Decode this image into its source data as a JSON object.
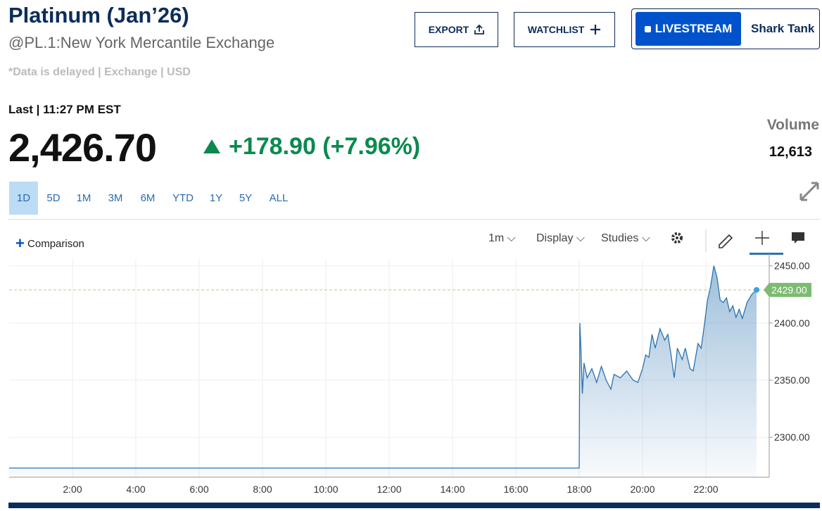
{
  "header": {
    "title": "Platinum (Jan’26)",
    "symbol": "@PL.1:New York Mercantile Exchange",
    "note": "*Data is delayed | Exchange | USD"
  },
  "buttons": {
    "export": "EXPORT",
    "watchlist": "WATCHLIST",
    "livestream": "LIVESTREAM",
    "show": "Shark Tank"
  },
  "quote": {
    "label": "Last | 11:27 PM EST",
    "price": "2,426.70",
    "change": "+178.90 (+7.96%)"
  },
  "volume": {
    "label": "Volume",
    "value": "12,613"
  },
  "ranges": [
    "1D",
    "5D",
    "1M",
    "3M",
    "6M",
    "YTD",
    "1Y",
    "5Y",
    "ALL"
  ],
  "toolbar": {
    "comparison": "Comparison",
    "interval": "1m",
    "display": "Display",
    "studies": "Studies"
  },
  "chart_data": {
    "type": "area",
    "color": "#2a72b0",
    "x": [
      0,
      18.0,
      18.02,
      18.05,
      18.1,
      18.15,
      18.25,
      18.4,
      18.55,
      18.7,
      18.85,
      19.0,
      19.1,
      19.3,
      19.5,
      19.7,
      19.85,
      20.0,
      20.1,
      20.2,
      20.3,
      20.4,
      20.55,
      20.7,
      20.8,
      20.9,
      21.0,
      21.1,
      21.25,
      21.35,
      21.5,
      21.6,
      21.75,
      21.85,
      21.95,
      22.05,
      22.15,
      22.25,
      22.35,
      22.45,
      22.55,
      22.65,
      22.75,
      22.85,
      22.95,
      23.05,
      23.15,
      23.3,
      23.45,
      23.6
    ],
    "values": [
      2273,
      2273,
      2400,
      2380,
      2338,
      2365,
      2352,
      2360,
      2348,
      2362,
      2350,
      2342,
      2355,
      2352,
      2358,
      2350,
      2348,
      2360,
      2372,
      2370,
      2390,
      2378,
      2395,
      2385,
      2390,
      2372,
      2352,
      2378,
      2368,
      2378,
      2360,
      2358,
      2382,
      2378,
      2398,
      2420,
      2432,
      2450,
      2440,
      2420,
      2418,
      2422,
      2410,
      2415,
      2405,
      2412,
      2404,
      2418,
      2425,
      2429
    ],
    "xlim": [
      0,
      24
    ],
    "ylim": [
      2265,
      2456
    ],
    "xticks": [
      {
        "value": 2,
        "label": "2:00"
      },
      {
        "value": 4,
        "label": "4:00"
      },
      {
        "value": 6,
        "label": "6:00"
      },
      {
        "value": 8,
        "label": "8:00"
      },
      {
        "value": 10,
        "label": "10:00"
      },
      {
        "value": 12,
        "label": "12:00"
      },
      {
        "value": 14,
        "label": "14:00"
      },
      {
        "value": 16,
        "label": "16:00"
      },
      {
        "value": 18,
        "label": "18:00"
      },
      {
        "value": 20,
        "label": "20:00"
      },
      {
        "value": 22,
        "label": "22:00"
      }
    ],
    "yticks": [
      {
        "value": 2300,
        "label": "2300.00"
      },
      {
        "value": 2350,
        "label": "2350.00"
      },
      {
        "value": 2400,
        "label": "2400.00"
      },
      {
        "value": 2450,
        "label": "2450.00"
      }
    ],
    "last_price": {
      "value": 2429,
      "label": "2429.00"
    },
    "grid": true
  }
}
